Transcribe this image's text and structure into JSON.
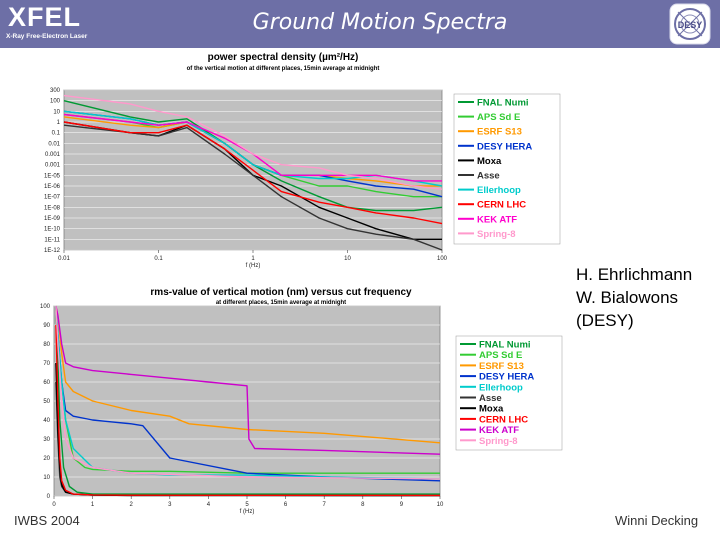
{
  "header": {
    "logo_main": "XFEL",
    "logo_sub": "X-Ray Free-Electron Laser",
    "title": "Ground Motion Spectra",
    "right_logo": "DESY",
    "background": "#6d6fa6"
  },
  "credits": {
    "line1": "H. Ehrlichmann",
    "line2": "W. Bialowons",
    "line3": "(DESY)"
  },
  "footer": {
    "left": "IWBS 2004",
    "right": "Winni Decking"
  },
  "chart_data": [
    {
      "type": "line",
      "title": "power spectral density (µm²/Hz)",
      "subtitle": "of the vertical motion at different places, 15min average at midnight",
      "xlabel": "f (Hz)",
      "xscale": "log",
      "yscale": "log",
      "xlim": [
        0.01,
        100
      ],
      "ylim": [
        1e-12,
        1000
      ],
      "x_ticks": [
        "0.01",
        "0.1",
        "1",
        "10",
        "100"
      ],
      "y_ticks": [
        "1E-12",
        "1E-11",
        "1E-10",
        "1E-09",
        "1E-08",
        "1E-07",
        "1E-06",
        "1E-05",
        "0.001",
        "0.001",
        "0.01",
        "0.1",
        "1",
        "10",
        "100",
        "300"
      ],
      "grid": true,
      "legend_position": "right",
      "series": [
        {
          "name": "FNAL Numi",
          "color": "#009933",
          "x": [
            0.01,
            0.05,
            0.1,
            0.2,
            0.5,
            1,
            2,
            5,
            10,
            20,
            50,
            100
          ],
          "y": [
            100,
            3,
            1,
            2,
            0.01,
            0.0001,
            3e-06,
            1e-07,
            1e-08,
            5e-09,
            5e-09,
            1e-08
          ]
        },
        {
          "name": "APS Sd E",
          "color": "#33cc33",
          "x": [
            0.01,
            0.05,
            0.1,
            0.2,
            0.5,
            1,
            2,
            5,
            10,
            20,
            50,
            100
          ],
          "y": [
            5,
            1,
            0.3,
            1,
            0.01,
            0.0001,
            1e-05,
            1e-06,
            1e-06,
            3e-07,
            1e-07,
            1e-07
          ]
        },
        {
          "name": "ESRF S13",
          "color": "#ff9900",
          "x": [
            0.01,
            0.05,
            0.1,
            0.2,
            0.5,
            1,
            2,
            5,
            10,
            20,
            50,
            100
          ],
          "y": [
            3,
            0.5,
            0.3,
            1,
            0.01,
            0.0001,
            1e-05,
            1e-05,
            5e-06,
            3e-06,
            1e-06,
            1e-06
          ]
        },
        {
          "name": "DESY HERA",
          "color": "#0033cc",
          "x": [
            0.01,
            0.05,
            0.1,
            0.2,
            0.5,
            1,
            2,
            5,
            10,
            20,
            50,
            100
          ],
          "y": [
            10,
            2,
            0.5,
            1,
            0.01,
            0.0001,
            1e-05,
            1e-05,
            3e-06,
            1e-06,
            5e-07,
            1e-07
          ]
        },
        {
          "name": "Moxa",
          "color": "#000000",
          "x": [
            0.01,
            0.05,
            0.1,
            0.2,
            0.5,
            1,
            2,
            5,
            10,
            20,
            50,
            100
          ],
          "y": [
            1,
            0.1,
            0.05,
            0.5,
            0.003,
            1e-05,
            1e-06,
            1e-08,
            1e-09,
            1e-10,
            1e-11,
            1e-11
          ]
        },
        {
          "name": "Asse",
          "color": "#333333",
          "x": [
            0.01,
            0.05,
            0.1,
            0.2,
            0.5,
            1,
            2,
            5,
            10,
            20,
            50,
            100
          ],
          "y": [
            0.5,
            0.1,
            0.05,
            0.3,
            0.001,
            1e-05,
            1e-07,
            1e-09,
            1e-10,
            3e-11,
            1e-11,
            1e-12
          ]
        },
        {
          "name": "Ellerhoop",
          "color": "#00cccc",
          "x": [
            0.01,
            0.05,
            0.1,
            0.2,
            0.5,
            1,
            2,
            5,
            10,
            20,
            50,
            100
          ],
          "y": [
            10,
            2,
            0.5,
            1,
            0.01,
            0.0001,
            1e-05,
            5e-06,
            5e-06,
            1e-05,
            3e-06,
            1e-06
          ]
        },
        {
          "name": "CERN LHC",
          "color": "#ff0000",
          "x": [
            0.01,
            0.05,
            0.1,
            0.2,
            0.5,
            1,
            2,
            5,
            10,
            20,
            50,
            100
          ],
          "y": [
            1,
            0.1,
            0.1,
            0.5,
            0.003,
            3e-05,
            3e-07,
            3e-08,
            1e-08,
            3e-09,
            1e-09,
            3e-10
          ]
        },
        {
          "name": "KEK ATF",
          "color": "#ff00cc",
          "x": [
            0.01,
            0.05,
            0.1,
            0.2,
            0.5,
            1,
            2,
            5,
            10,
            20,
            50,
            100
          ],
          "y": [
            5,
            1,
            0.5,
            1,
            0.03,
            0.001,
            1e-05,
            1e-05,
            1e-05,
            1e-05,
            3e-06,
            3e-06
          ]
        },
        {
          "name": "Spring-8",
          "color": "#ff99cc",
          "x": [
            0.01,
            0.05,
            0.1,
            0.2,
            0.5,
            1,
            2,
            5,
            10,
            20,
            50,
            100
          ],
          "y": [
            300,
            50,
            10,
            3,
            0.05,
            0.001,
            0.0001,
            5e-05,
            1e-05,
            5e-06,
            1e-06,
            5e-07
          ]
        }
      ]
    },
    {
      "type": "line",
      "title": "rms-value of vertical motion (nm) versus cut frequency",
      "subtitle": "at different places, 15min average at midnight",
      "xlabel": "f (Hz)",
      "xlim": [
        0,
        10
      ],
      "ylim": [
        0,
        100
      ],
      "x_ticks": [
        "0",
        "1",
        "2",
        "3",
        "4",
        "5",
        "6",
        "7",
        "8",
        "9",
        "10"
      ],
      "y_ticks": [
        "0",
        "10",
        "20",
        "30",
        "40",
        "50",
        "60",
        "70",
        "80",
        "90",
        "100"
      ],
      "grid": true,
      "legend_position": "right",
      "series": [
        {
          "name": "FNAL Numi",
          "color": "#009933",
          "x": [
            0.05,
            0.1,
            0.15,
            0.25,
            0.4,
            0.6,
            1,
            2,
            3,
            5,
            7,
            10
          ],
          "y": [
            100,
            70,
            40,
            15,
            5,
            2,
            1,
            1,
            1,
            1,
            1,
            1
          ]
        },
        {
          "name": "APS Sd E",
          "color": "#33cc33",
          "x": [
            0.05,
            0.1,
            0.2,
            0.3,
            0.5,
            0.8,
            1,
            2,
            3,
            5,
            7,
            10
          ],
          "y": [
            100,
            80,
            60,
            40,
            20,
            15,
            14,
            13,
            13,
            12,
            12,
            12
          ]
        },
        {
          "name": "ESRF S13",
          "color": "#ff9900",
          "x": [
            0.05,
            0.1,
            0.2,
            0.3,
            0.5,
            1,
            2,
            3,
            3.5,
            5,
            7,
            10
          ],
          "y": [
            100,
            95,
            75,
            60,
            55,
            50,
            45,
            42,
            38,
            35,
            33,
            28
          ]
        },
        {
          "name": "DESY HERA",
          "color": "#0033cc",
          "x": [
            0.05,
            0.1,
            0.2,
            0.3,
            0.5,
            1,
            1.5,
            2,
            2.3,
            3,
            5,
            7,
            10
          ],
          "y": [
            100,
            85,
            60,
            45,
            42,
            40,
            39,
            38,
            37,
            20,
            12,
            10,
            8
          ]
        },
        {
          "name": "Ellerhoop",
          "color": "#00cccc",
          "x": [
            0.05,
            0.1,
            0.2,
            0.3,
            0.5,
            1,
            2,
            3,
            5,
            7,
            10
          ],
          "y": [
            100,
            85,
            60,
            40,
            25,
            15,
            12,
            11,
            11,
            10,
            9
          ]
        },
        {
          "name": "Asse",
          "color": "#333333",
          "x": [
            0.05,
            0.1,
            0.15,
            0.2,
            0.3,
            0.5,
            1,
            2,
            10
          ],
          "y": [
            60,
            30,
            10,
            5,
            2,
            1,
            0.5,
            0.3,
            0.2
          ]
        },
        {
          "name": "Moxa",
          "color": "#000000",
          "x": [
            0.05,
            0.1,
            0.15,
            0.2,
            0.3,
            0.5,
            1,
            2,
            10
          ],
          "y": [
            70,
            35,
            15,
            6,
            2,
            1,
            0.5,
            0.3,
            0.2
          ]
        },
        {
          "name": "CERN LHC",
          "color": "#ff0000",
          "x": [
            0.05,
            0.1,
            0.15,
            0.2,
            0.3,
            0.5,
            1,
            2,
            10
          ],
          "y": [
            90,
            50,
            20,
            8,
            3,
            1,
            0.6,
            0.4,
            0.3
          ]
        },
        {
          "name": "KEK ATF",
          "color": "#cc00cc",
          "x": [
            0.05,
            0.1,
            0.2,
            0.3,
            0.5,
            1,
            2,
            3,
            4,
            5,
            5.05,
            5.2,
            7,
            10
          ],
          "y": [
            100,
            95,
            80,
            70,
            68,
            66,
            64,
            62,
            60,
            58,
            30,
            25,
            24,
            22
          ]
        },
        {
          "name": "Spring-8",
          "color": "#ff99cc",
          "x": [
            0.05,
            0.1,
            0.2,
            0.3,
            0.5,
            1,
            2,
            5,
            10
          ],
          "y": [
            100,
            80,
            50,
            30,
            20,
            15,
            12,
            10,
            9
          ]
        }
      ]
    }
  ]
}
